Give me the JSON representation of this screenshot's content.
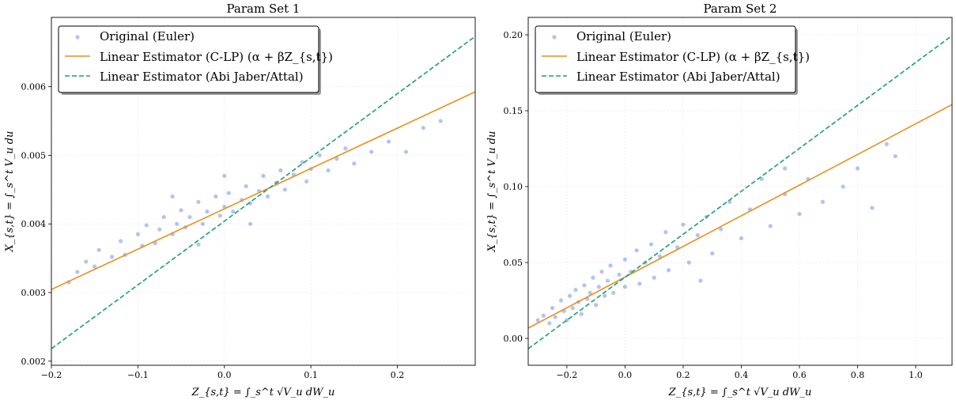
{
  "chart_data": [
    {
      "type": "scatter",
      "title": "Param Set 1",
      "xlabel": "Z_{s,t} = ∫_s^t √V_u dW_u",
      "ylabel": "X_{s,t} = ∫_s^t V_u du",
      "xlim": [
        -0.2,
        0.29
      ],
      "ylim": [
        0.00194,
        0.00701
      ],
      "xticks": [
        "-0.2",
        "-0.1",
        "0.0",
        "0.1",
        "0.2"
      ],
      "xtick_values": [
        -0.2,
        -0.1,
        0.0,
        0.1,
        0.2
      ],
      "yticks": [
        "0.002",
        "0.003",
        "0.004",
        "0.005",
        "0.006"
      ],
      "ytick_values": [
        0.002,
        0.003,
        0.004,
        0.005,
        0.006
      ],
      "grid": true,
      "legend_placement": "top-left",
      "legend": [
        "Original (Euler)",
        "Linear Estimator (C-LP) (α + βZ_{s,t})",
        "Linear Estimator (Abi Jaber/Attal)"
      ],
      "series": [
        {
          "name": "Original (Euler)",
          "kind": "points",
          "color": "#4169e1",
          "points": [
            [
              -0.18,
              0.00315
            ],
            [
              -0.17,
              0.0033
            ],
            [
              -0.16,
              0.00345
            ],
            [
              -0.15,
              0.00338
            ],
            [
              -0.145,
              0.00362
            ],
            [
              -0.13,
              0.00352
            ],
            [
              -0.12,
              0.00375
            ],
            [
              -0.115,
              0.00355
            ],
            [
              -0.1,
              0.00385
            ],
            [
              -0.095,
              0.00368
            ],
            [
              -0.09,
              0.00398
            ],
            [
              -0.08,
              0.00372
            ],
            [
              -0.075,
              0.00392
            ],
            [
              -0.07,
              0.0041
            ],
            [
              -0.06,
              0.00385
            ],
            [
              -0.055,
              0.004
            ],
            [
              -0.05,
              0.0042
            ],
            [
              -0.045,
              0.00395
            ],
            [
              -0.04,
              0.0041
            ],
            [
              -0.03,
              0.00432
            ],
            [
              -0.025,
              0.004
            ],
            [
              -0.02,
              0.00418
            ],
            [
              -0.01,
              0.0044
            ],
            [
              -0.005,
              0.00412
            ],
            [
              0.0,
              0.00425
            ],
            [
              0.005,
              0.00445
            ],
            [
              0.01,
              0.00418
            ],
            [
              0.02,
              0.00435
            ],
            [
              0.025,
              0.00455
            ],
            [
              0.03,
              0.0043
            ],
            [
              0.04,
              0.00448
            ],
            [
              0.045,
              0.0047
            ],
            [
              0.05,
              0.0044
            ],
            [
              0.06,
              0.0046
            ],
            [
              0.065,
              0.00478
            ],
            [
              0.07,
              0.0045
            ],
            [
              0.08,
              0.00472
            ],
            [
              0.09,
              0.0049
            ],
            [
              0.095,
              0.00462
            ],
            [
              0.1,
              0.0048
            ],
            [
              0.11,
              0.005
            ],
            [
              0.12,
              0.00478
            ],
            [
              0.13,
              0.00495
            ],
            [
              0.14,
              0.0051
            ],
            [
              0.15,
              0.00488
            ],
            [
              0.17,
              0.00505
            ],
            [
              0.19,
              0.0052
            ],
            [
              0.21,
              0.00505
            ],
            [
              0.23,
              0.0054
            ],
            [
              0.25,
              0.0055
            ],
            [
              -0.06,
              0.0044
            ],
            [
              0.03,
              0.004
            ],
            [
              0.0,
              0.0047
            ],
            [
              -0.03,
              0.0037
            ]
          ]
        },
        {
          "name": "Linear Estimator (C-LP) (α + βZ_{s,t})",
          "kind": "line",
          "color": "#e8901a",
          "intercept": 0.00422,
          "slope": 0.00588
        },
        {
          "name": "Linear Estimator (Abi Jaber/Attal)",
          "kind": "dashed-line",
          "color": "#1a9e77",
          "intercept": 0.00404,
          "slope": 0.00929
        }
      ]
    },
    {
      "type": "scatter",
      "title": "Param Set 2",
      "xlabel": "Z_{s,t} = ∫_s^t √V_u dW_u",
      "ylabel": "X_{s,t} = ∫_s^t V_u du",
      "xlim": [
        -0.333,
        1.125
      ],
      "ylim": [
        -0.0177,
        0.2115
      ],
      "xticks": [
        "-0.2",
        "0.0",
        "0.2",
        "0.4",
        "0.6",
        "0.8",
        "1.0"
      ],
      "xtick_values": [
        -0.2,
        0.0,
        0.2,
        0.4,
        0.6,
        0.8,
        1.0
      ],
      "yticks": [
        "0.00",
        "0.05",
        "0.10",
        "0.15",
        "0.20"
      ],
      "ytick_values": [
        0.0,
        0.05,
        0.1,
        0.15,
        0.2
      ],
      "grid": true,
      "legend_placement": "top-left",
      "legend": [
        "Original (Euler)",
        "Linear Estimator (C-LP) (α + βZ_{s,t})",
        "Linear Estimator (Abi Jaber/Attal)"
      ],
      "series": [
        {
          "name": "Original (Euler)",
          "kind": "points",
          "color": "#4169e1",
          "points": [
            [
              -0.3,
              0.012
            ],
            [
              -0.28,
              0.015
            ],
            [
              -0.26,
              0.01
            ],
            [
              -0.25,
              0.02
            ],
            [
              -0.24,
              0.014
            ],
            [
              -0.22,
              0.025
            ],
            [
              -0.21,
              0.018
            ],
            [
              -0.2,
              0.012
            ],
            [
              -0.19,
              0.028
            ],
            [
              -0.18,
              0.02
            ],
            [
              -0.17,
              0.032
            ],
            [
              -0.16,
              0.024
            ],
            [
              -0.15,
              0.016
            ],
            [
              -0.14,
              0.035
            ],
            [
              -0.13,
              0.026
            ],
            [
              -0.12,
              0.03
            ],
            [
              -0.11,
              0.04
            ],
            [
              -0.1,
              0.022
            ],
            [
              -0.09,
              0.034
            ],
            [
              -0.08,
              0.044
            ],
            [
              -0.07,
              0.028
            ],
            [
              -0.06,
              0.038
            ],
            [
              -0.05,
              0.048
            ],
            [
              -0.04,
              0.03
            ],
            [
              -0.02,
              0.042
            ],
            [
              0.0,
              0.052
            ],
            [
              0.0,
              0.034
            ],
            [
              0.02,
              0.044
            ],
            [
              0.04,
              0.058
            ],
            [
              0.05,
              0.036
            ],
            [
              0.07,
              0.05
            ],
            [
              0.09,
              0.062
            ],
            [
              0.1,
              0.04
            ],
            [
              0.12,
              0.054
            ],
            [
              0.14,
              0.07
            ],
            [
              0.15,
              0.045
            ],
            [
              0.18,
              0.06
            ],
            [
              0.2,
              0.075
            ],
            [
              0.22,
              0.05
            ],
            [
              0.25,
              0.068
            ],
            [
              0.28,
              0.08
            ],
            [
              0.3,
              0.056
            ],
            [
              0.33,
              0.072
            ],
            [
              0.36,
              0.09
            ],
            [
              0.4,
              0.066
            ],
            [
              0.43,
              0.085
            ],
            [
              0.47,
              0.105
            ],
            [
              0.5,
              0.074
            ],
            [
              0.55,
              0.095
            ],
            [
              0.6,
              0.082
            ],
            [
              0.63,
              0.105
            ],
            [
              0.68,
              0.09
            ],
            [
              0.75,
              0.1
            ],
            [
              0.8,
              0.112
            ],
            [
              0.85,
              0.086
            ],
            [
              0.9,
              0.128
            ],
            [
              0.93,
              0.12
            ],
            [
              0.26,
              0.038
            ],
            [
              0.55,
              0.112
            ]
          ]
        },
        {
          "name": "Linear Estimator (C-LP) (α + βZ_{s,t})",
          "kind": "line",
          "color": "#e8901a",
          "intercept": 0.0404,
          "slope": 0.101
        },
        {
          "name": "Linear Estimator (Abi Jaber/Attal)",
          "kind": "dashed-line",
          "color": "#1a9e77",
          "intercept": 0.0403,
          "slope": 0.1415
        }
      ]
    }
  ]
}
